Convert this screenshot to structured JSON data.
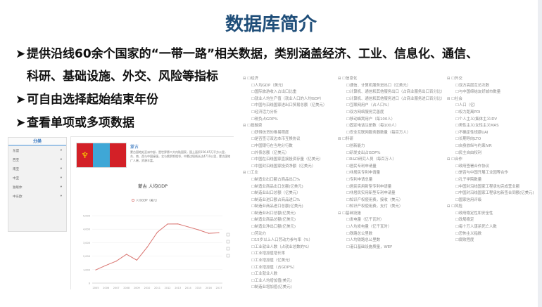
{
  "slide": {
    "title": "数据库简介",
    "bullets": [
      "提供沿线60余个国家的“一带一路”相关数据，类别涵盖经济、工业、信息化、通信、",
      "科研、基础设施、外交、风险等指标",
      "可自由选择起始结束年份",
      "查看单项或多项数据"
    ],
    "title_color": "#1f4e79"
  },
  "sidebar": {
    "header": "分类",
    "items": [
      "东盟",
      "西亚",
      "南亚",
      "中亚",
      "独联体",
      "中东欧"
    ]
  },
  "country": {
    "name": "蒙古",
    "description": "蒙古国地处亚洲中部，是世界第二大内陆国家，国土面积156.65万平方公里，东、南、西与中国接壤，北与俄罗斯相邻，中蒙边境线长达4710公里，蒙古国地广人稀，资源丰富。"
  },
  "chart_data": {
    "type": "line",
    "title": "蒙古 人均GDP",
    "legend": "人均GDP（美元）",
    "categories": [
      "2005",
      "2006",
      "2007",
      "2008",
      "2009",
      "2010",
      "2011",
      "2012",
      "2013",
      "2014",
      "2015",
      "2016",
      "2017"
    ],
    "values": [
      980,
      1320,
      1630,
      2140,
      1700,
      2650,
      3770,
      4380,
      4390,
      4170,
      3950,
      3690,
      3730
    ],
    "ylim": [
      0,
      5000
    ],
    "yticks": [
      "0",
      "1,000",
      "2,000",
      "3,000",
      "4,000",
      "5,000"
    ],
    "color": "#d9736f",
    "grid": true,
    "legend_position": "top"
  },
  "tree": [
    [
      {
        "cat": "经济",
        "items": [
          "人均GDP（美元）",
          "国际旅游收入占出口比重",
          "就业人均生产值（就业人口的人均GDP）",
          "中国与沿线国家进出口贸易总额（亿美元）",
          "经济活力分析",
          "税负占GDP%"
        ]
      },
      {
        "cat": "投融资",
        "items": [
          "获得信贷的难易程度",
          "是否签订双边本币互换协议",
          "中国银行在当地分行数",
          "外债总额（亿美元）",
          "中国在沿线国家直接投资存量（亿美元）",
          "中国对沿线国家投资净额（亿美元）"
        ]
      },
      {
        "cat": "工业",
        "items": [
          "制造业出口额占商品出口%",
          "制造业商品出口总额(亿美元)",
          "制造业出口总额（亿美元）",
          "制造业进口额占商品进口%",
          "制造业商品进口总额(亿美元)",
          "制造业出口总额(亿美元)",
          "制造业商品总额(亿美元)",
          "制造业净出口额(亿美元)",
          "劳动力",
          "15岁以上人口劳动力参与率（%）",
          "工业就业人数（占就业总数的%）",
          "工业增加值增长率",
          "工业增加值（亿美元）",
          "工业增加值（占GDP%）",
          "工业就业人数",
          "工业人均增加值(美元)",
          "制造业增加值(亿美元)"
        ]
      }
    ],
    [
      {
        "cat": "信息化",
        "items": [
          "通信、计算机服务进出口（亿美元）",
          "计算机、通信和其他服务出口（占商业服务出口百分比）",
          "计算机、通信和其他服务进口（占商业服务进口百分比）",
          "互联网用户（占人口%）",
          "双方网络服务完善度",
          "移动蜂窝用户（每100人）",
          "固定电话注册数（每100人）",
          "安全互联网服务器数量（每百万人）"
        ]
      },
      {
        "cat": "科研",
        "items": [
          "创新能力",
          "研发支出占GDP%",
          "R&D研究人员（每百万人）",
          "居民专利申请量",
          "非居民专利申请量",
          "专利申请总量",
          "居民实用新型专利申请量",
          "非居民实用新型专利申请量",
          "知识产权使用费，接收（美元）",
          "知识产权使用费，支付（美元）"
        ]
      },
      {
        "cat": "基础设施",
        "items": [
          "发电量（亿千瓦时）",
          "人均发电量（亿千瓦时）",
          "铁路总公里数",
          "人均铁路总公里数",
          "港口基础设施质量，WEF"
        ]
      }
    ],
    [
      {
        "cat": "外交",
        "items": [
          "双方高层互访次数",
          "与中国缔结友好城市数量"
        ]
      },
      {
        "cat": "社会",
        "items": [
          "人口（亿）",
          "权力距离PDI",
          "个人主义/集体主义IDV",
          "男性主义/女性主义MAS",
          "不确定性规避UAI",
          "长期导向LTO",
          "自身放纵与约束IVR",
          "民主自由权利"
        ]
      },
      {
        "cat": "合作",
        "items": [
          "政府签署合作协议",
          "是否与中国开展工业园等合作",
          "孔子学院数量",
          "中国对沿线国家工程承包完成营业额",
          "中国对沿线国家工程承包新签合同额(亿美元)",
          "国家信用评级"
        ]
      },
      {
        "cat": "风险",
        "items": [
          "政府稳定性和安全性",
          "政局稳定",
          "每十万人谋杀死亡人数",
          "恐怖主义指数",
          "腐败程度"
        ]
      }
    ]
  ]
}
